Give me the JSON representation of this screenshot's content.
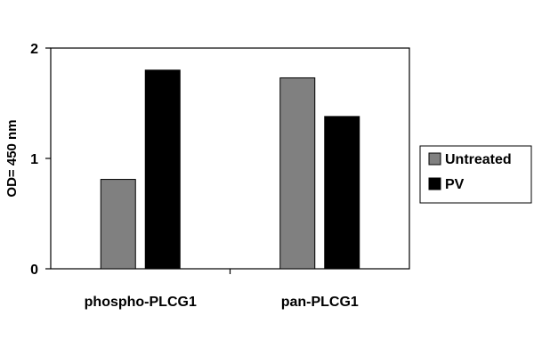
{
  "chart_data": {
    "type": "bar",
    "title": "",
    "xlabel": "",
    "ylabel": "OD= 450 nm",
    "categories": [
      "phospho-PLCG1",
      "pan-PLCG1"
    ],
    "series": [
      {
        "name": "Untreated",
        "values": [
          0.81,
          1.73
        ],
        "color": "#808080"
      },
      {
        "name": "PV",
        "values": [
          1.8,
          1.38
        ],
        "color": "#000000"
      }
    ],
    "ylim": [
      0,
      2
    ],
    "yticks": [
      0,
      1,
      2
    ],
    "grid": false,
    "legend_position": "right",
    "plot_border": true
  }
}
